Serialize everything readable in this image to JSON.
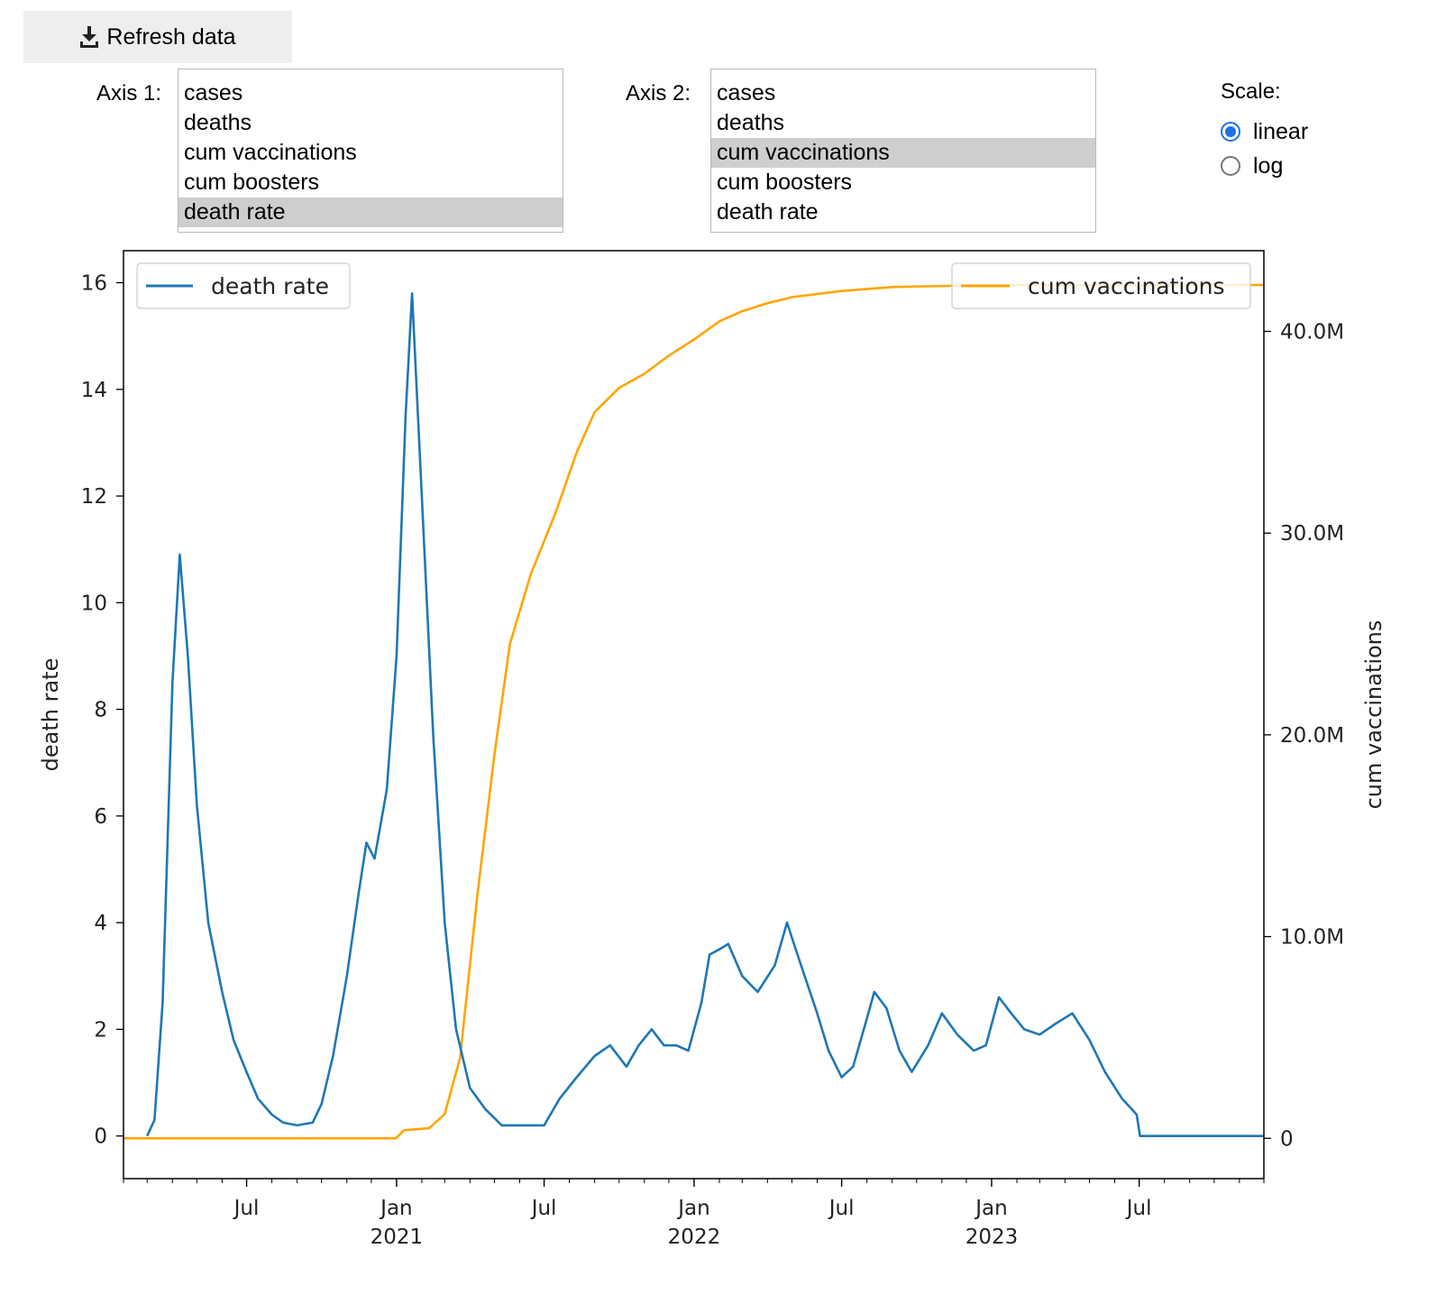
{
  "toolbar": {
    "refresh_label": "Refresh data"
  },
  "axis1": {
    "label": "Axis 1:",
    "options": [
      "cases",
      "deaths",
      "cum vaccinations",
      "cum boosters",
      "death rate"
    ],
    "selected": "death rate"
  },
  "axis2": {
    "label": "Axis 2:",
    "options": [
      "cases",
      "deaths",
      "cum vaccinations",
      "cum boosters",
      "death rate"
    ],
    "selected": "cum vaccinations"
  },
  "scale": {
    "label": "Scale:",
    "options": [
      "linear",
      "log"
    ],
    "selected": "linear"
  },
  "colors": {
    "death_rate": "#1f77b4",
    "cum_vaccinations": "#ffa500",
    "radio_accent": "#1a73e8"
  },
  "chart_data": {
    "type": "line",
    "grid": false,
    "x_axis": {
      "type": "date",
      "range": [
        "2020-02-01",
        "2023-12-01"
      ],
      "tick_labels": [
        {
          "date": "2020-07-01",
          "label": "Jul",
          "year": ""
        },
        {
          "date": "2021-01-01",
          "label": "Jan",
          "year": "2021"
        },
        {
          "date": "2021-07-01",
          "label": "Jul",
          "year": ""
        },
        {
          "date": "2022-01-01",
          "label": "Jan",
          "year": "2022"
        },
        {
          "date": "2022-07-01",
          "label": "Jul",
          "year": ""
        },
        {
          "date": "2023-01-01",
          "label": "Jan",
          "year": "2023"
        },
        {
          "date": "2023-07-01",
          "label": "Jul",
          "year": ""
        }
      ]
    },
    "y_left": {
      "label": "death rate",
      "ylim": [
        -0.8,
        16.6
      ],
      "ticks": [
        0,
        2,
        4,
        6,
        8,
        10,
        12,
        14,
        16
      ],
      "tick_labels": [
        "0",
        "2",
        "4",
        "6",
        "8",
        "10",
        "12",
        "14",
        "16"
      ]
    },
    "y_right": {
      "label": "cum vaccinations",
      "ylim": [
        -2000000,
        44000000
      ],
      "ticks": [
        0,
        10000000,
        20000000,
        30000000,
        40000000
      ],
      "tick_labels": [
        "0",
        "10.0M",
        "20.0M",
        "30.0M",
        "40.0M"
      ]
    },
    "legend_left": {
      "label": "death rate",
      "position": "top-left"
    },
    "legend_right": {
      "label": "cum vaccinations",
      "position": "top-right"
    },
    "series": [
      {
        "name": "death rate",
        "axis": "left",
        "points": [
          [
            "2020-03-01",
            0
          ],
          [
            "2020-03-10",
            0.3
          ],
          [
            "2020-03-20",
            2.5
          ],
          [
            "2020-04-01",
            8.5
          ],
          [
            "2020-04-10",
            10.9
          ],
          [
            "2020-04-20",
            9.0
          ],
          [
            "2020-05-01",
            6.2
          ],
          [
            "2020-05-15",
            4.0
          ],
          [
            "2020-06-01",
            2.7
          ],
          [
            "2020-06-15",
            1.8
          ],
          [
            "2020-07-01",
            1.2
          ],
          [
            "2020-07-15",
            0.7
          ],
          [
            "2020-08-01",
            0.4
          ],
          [
            "2020-08-15",
            0.25
          ],
          [
            "2020-09-01",
            0.2
          ],
          [
            "2020-09-20",
            0.25
          ],
          [
            "2020-10-01",
            0.6
          ],
          [
            "2020-10-15",
            1.5
          ],
          [
            "2020-11-01",
            3.0
          ],
          [
            "2020-11-15",
            4.5
          ],
          [
            "2020-11-25",
            5.5
          ],
          [
            "2020-12-05",
            5.2
          ],
          [
            "2020-12-20",
            6.5
          ],
          [
            "2021-01-01",
            9.0
          ],
          [
            "2021-01-12",
            13.5
          ],
          [
            "2021-01-20",
            15.8
          ],
          [
            "2021-02-01",
            12.0
          ],
          [
            "2021-02-15",
            7.5
          ],
          [
            "2021-03-01",
            4.0
          ],
          [
            "2021-03-15",
            2.0
          ],
          [
            "2021-04-01",
            0.9
          ],
          [
            "2021-04-20",
            0.5
          ],
          [
            "2021-05-10",
            0.2
          ],
          [
            "2021-06-10",
            0.2
          ],
          [
            "2021-07-01",
            0.2
          ],
          [
            "2021-07-20",
            0.7
          ],
          [
            "2021-08-10",
            1.1
          ],
          [
            "2021-09-01",
            1.5
          ],
          [
            "2021-09-20",
            1.7
          ],
          [
            "2021-10-10",
            1.3
          ],
          [
            "2021-10-25",
            1.7
          ],
          [
            "2021-11-10",
            2.0
          ],
          [
            "2021-11-25",
            1.7
          ],
          [
            "2021-12-10",
            1.7
          ],
          [
            "2021-12-25",
            1.6
          ],
          [
            "2022-01-10",
            2.5
          ],
          [
            "2022-01-20",
            3.4
          ],
          [
            "2022-02-01",
            3.5
          ],
          [
            "2022-02-12",
            3.6
          ],
          [
            "2022-03-01",
            3.0
          ],
          [
            "2022-03-20",
            2.7
          ],
          [
            "2022-04-10",
            3.2
          ],
          [
            "2022-04-25",
            4.0
          ],
          [
            "2022-05-10",
            3.3
          ],
          [
            "2022-06-01",
            2.3
          ],
          [
            "2022-06-15",
            1.6
          ],
          [
            "2022-07-01",
            1.1
          ],
          [
            "2022-07-15",
            1.3
          ],
          [
            "2022-08-01",
            2.2
          ],
          [
            "2022-08-10",
            2.7
          ],
          [
            "2022-08-25",
            2.4
          ],
          [
            "2022-09-10",
            1.6
          ],
          [
            "2022-09-25",
            1.2
          ],
          [
            "2022-10-15",
            1.7
          ],
          [
            "2022-11-01",
            2.3
          ],
          [
            "2022-11-20",
            1.9
          ],
          [
            "2022-12-10",
            1.6
          ],
          [
            "2022-12-25",
            1.7
          ],
          [
            "2023-01-10",
            2.6
          ],
          [
            "2023-01-25",
            2.3
          ],
          [
            "2023-02-10",
            2.0
          ],
          [
            "2023-03-01",
            1.9
          ],
          [
            "2023-03-20",
            2.1
          ],
          [
            "2023-04-10",
            2.3
          ],
          [
            "2023-05-01",
            1.8
          ],
          [
            "2023-05-20",
            1.2
          ],
          [
            "2023-06-10",
            0.7
          ],
          [
            "2023-06-28",
            0.4
          ],
          [
            "2023-07-02",
            0
          ],
          [
            "2023-12-01",
            0
          ]
        ]
      },
      {
        "name": "cum vaccinations",
        "axis": "right",
        "points": [
          [
            "2020-02-01",
            0
          ],
          [
            "2020-12-31",
            0
          ],
          [
            "2021-01-10",
            400000
          ],
          [
            "2021-02-10",
            500000
          ],
          [
            "2021-03-01",
            1200000
          ],
          [
            "2021-03-20",
            4000000
          ],
          [
            "2021-04-10",
            12000000
          ],
          [
            "2021-05-01",
            19000000
          ],
          [
            "2021-05-20",
            24500000
          ],
          [
            "2021-06-15",
            28000000
          ],
          [
            "2021-07-15",
            31000000
          ],
          [
            "2021-08-10",
            34000000
          ],
          [
            "2021-09-01",
            36000000
          ],
          [
            "2021-10-01",
            37200000
          ],
          [
            "2021-11-01",
            37900000
          ],
          [
            "2021-12-01",
            38800000
          ],
          [
            "2022-01-01",
            39600000
          ],
          [
            "2022-02-01",
            40500000
          ],
          [
            "2022-03-01",
            41000000
          ],
          [
            "2022-04-01",
            41400000
          ],
          [
            "2022-05-01",
            41700000
          ],
          [
            "2022-07-01",
            42000000
          ],
          [
            "2022-09-01",
            42200000
          ],
          [
            "2023-01-01",
            42300000
          ],
          [
            "2023-12-01",
            42300000
          ]
        ]
      }
    ]
  }
}
